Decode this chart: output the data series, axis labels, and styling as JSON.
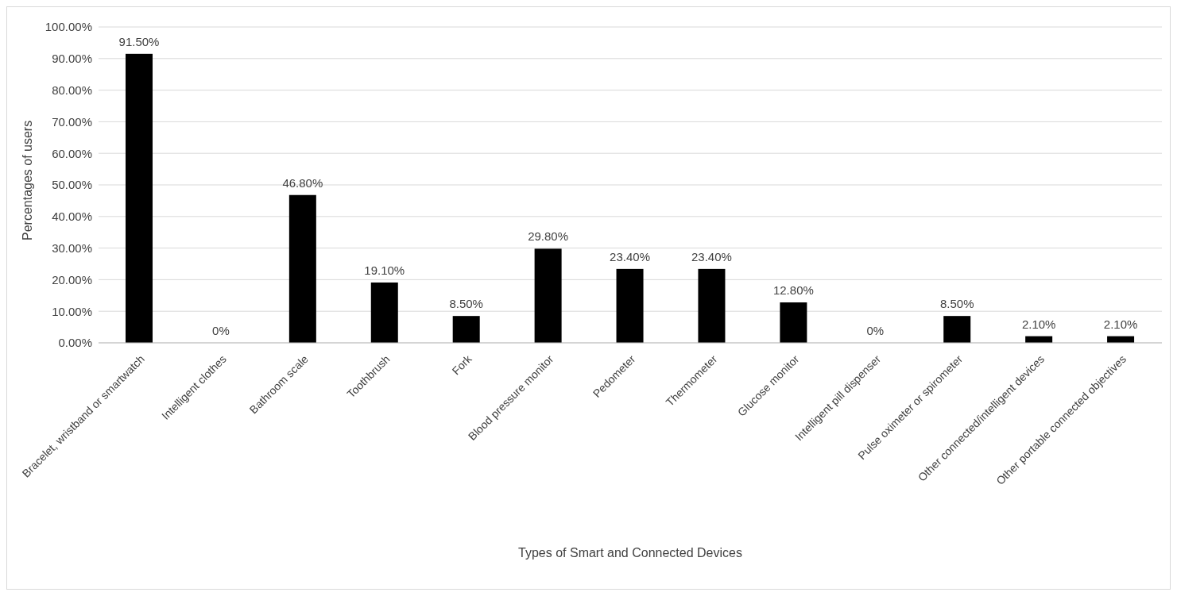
{
  "chart_data": {
    "type": "bar",
    "xlabel": "Types of Smart and Connected  Devices",
    "ylabel": "Percentages of users",
    "categories": [
      "Bracelet, wristband or smartwatch",
      "Intelligent clothes",
      "Bathroom scale",
      "Toothbrush",
      "Fork",
      "Blood pressure monitor",
      "Pedometer",
      "Thermometer",
      "Glucose monitor",
      "Intelligent pill dispenser",
      "Pulse oximeter or spirometer",
      "Other connected/intelligent devices",
      "Other portable connected objectives"
    ],
    "values": [
      91.5,
      0,
      46.8,
      19.1,
      8.5,
      29.8,
      23.4,
      23.4,
      12.8,
      0,
      8.5,
      2.1,
      2.1
    ],
    "value_labels": [
      "91.50%",
      "0%",
      "46.80%",
      "19.10%",
      "8.50%",
      "29.80%",
      "23.40%",
      "23.40%",
      "12.80%",
      "0%",
      "8.50%",
      "2.10%",
      "2.10%"
    ],
    "color": "#000000",
    "ylim": [
      0,
      100
    ],
    "yticks": [
      {
        "value": 0,
        "label": "0.00%"
      },
      {
        "value": 10,
        "label": "10.00%"
      },
      {
        "value": 20,
        "label": "20.00%"
      },
      {
        "value": 30,
        "label": "30.00%"
      },
      {
        "value": 40,
        "label": "40.00%"
      },
      {
        "value": 50,
        "label": "50.00%"
      },
      {
        "value": 60,
        "label": "60.00%"
      },
      {
        "value": 70,
        "label": "70.00%"
      },
      {
        "value": 80,
        "label": "80.00%"
      },
      {
        "value": 90,
        "label": "90.00%"
      },
      {
        "value": 100,
        "label": "100.00%"
      }
    ],
    "grid": "y",
    "legend": false
  }
}
